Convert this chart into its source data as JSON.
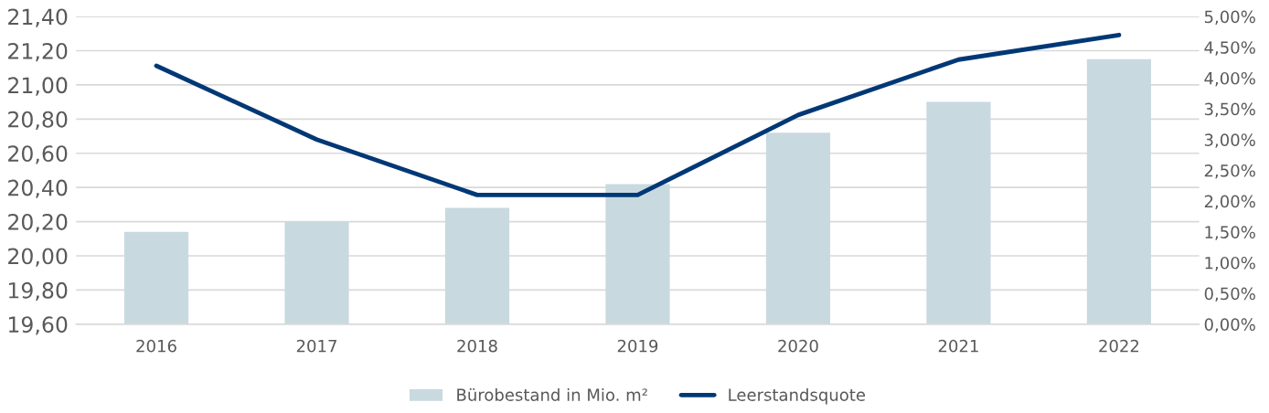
{
  "chart_data": {
    "type": "bar",
    "categories": [
      "2016",
      "2017",
      "2018",
      "2019",
      "2020",
      "2021",
      "2022"
    ],
    "series": [
      {
        "name": "Bürobestand in Mio. m²",
        "color": "#c9d9e0",
        "values": [
          20.14,
          20.2,
          20.28,
          20.42,
          20.72,
          20.9,
          21.15
        ]
      },
      {
        "name": "Leerstandsquote",
        "type": "line",
        "axis": "y2",
        "color": "#003876",
        "values": [
          4.2,
          3.0,
          2.1,
          2.1,
          3.4,
          4.3,
          4.7
        ]
      }
    ],
    "ylim": [
      19.6,
      21.4
    ],
    "yticks": [
      {
        "value": 19.6,
        "label": "19,60"
      },
      {
        "value": 19.8,
        "label": "19,80"
      },
      {
        "value": 20.0,
        "label": "20,00"
      },
      {
        "value": 20.2,
        "label": "20,20"
      },
      {
        "value": 20.4,
        "label": "20,40"
      },
      {
        "value": 20.6,
        "label": "20,60"
      },
      {
        "value": 20.8,
        "label": "20,80"
      },
      {
        "value": 21.0,
        "label": "21,00"
      },
      {
        "value": 21.2,
        "label": "21,20"
      },
      {
        "value": 21.4,
        "label": "21,40"
      }
    ],
    "y2lim": [
      0,
      5
    ],
    "y2ticks": [
      {
        "value": 0,
        "label": "0,00%"
      },
      {
        "value": 0.5,
        "label": "0,50%"
      },
      {
        "value": 1.0,
        "label": "1,00%"
      },
      {
        "value": 1.5,
        "label": "1,50%"
      },
      {
        "value": 2.0,
        "label": "2,00%"
      },
      {
        "value": 2.5,
        "label": "2,50%"
      },
      {
        "value": 3.0,
        "label": "3,00%"
      },
      {
        "value": 3.5,
        "label": "3,50%"
      },
      {
        "value": 4.0,
        "label": "4,00%"
      },
      {
        "value": 4.5,
        "label": "4,50%"
      },
      {
        "value": 5.0,
        "label": "5,00%"
      }
    ],
    "grid": "y",
    "legend": "bottom",
    "marker": "none",
    "line_style": "solid"
  }
}
